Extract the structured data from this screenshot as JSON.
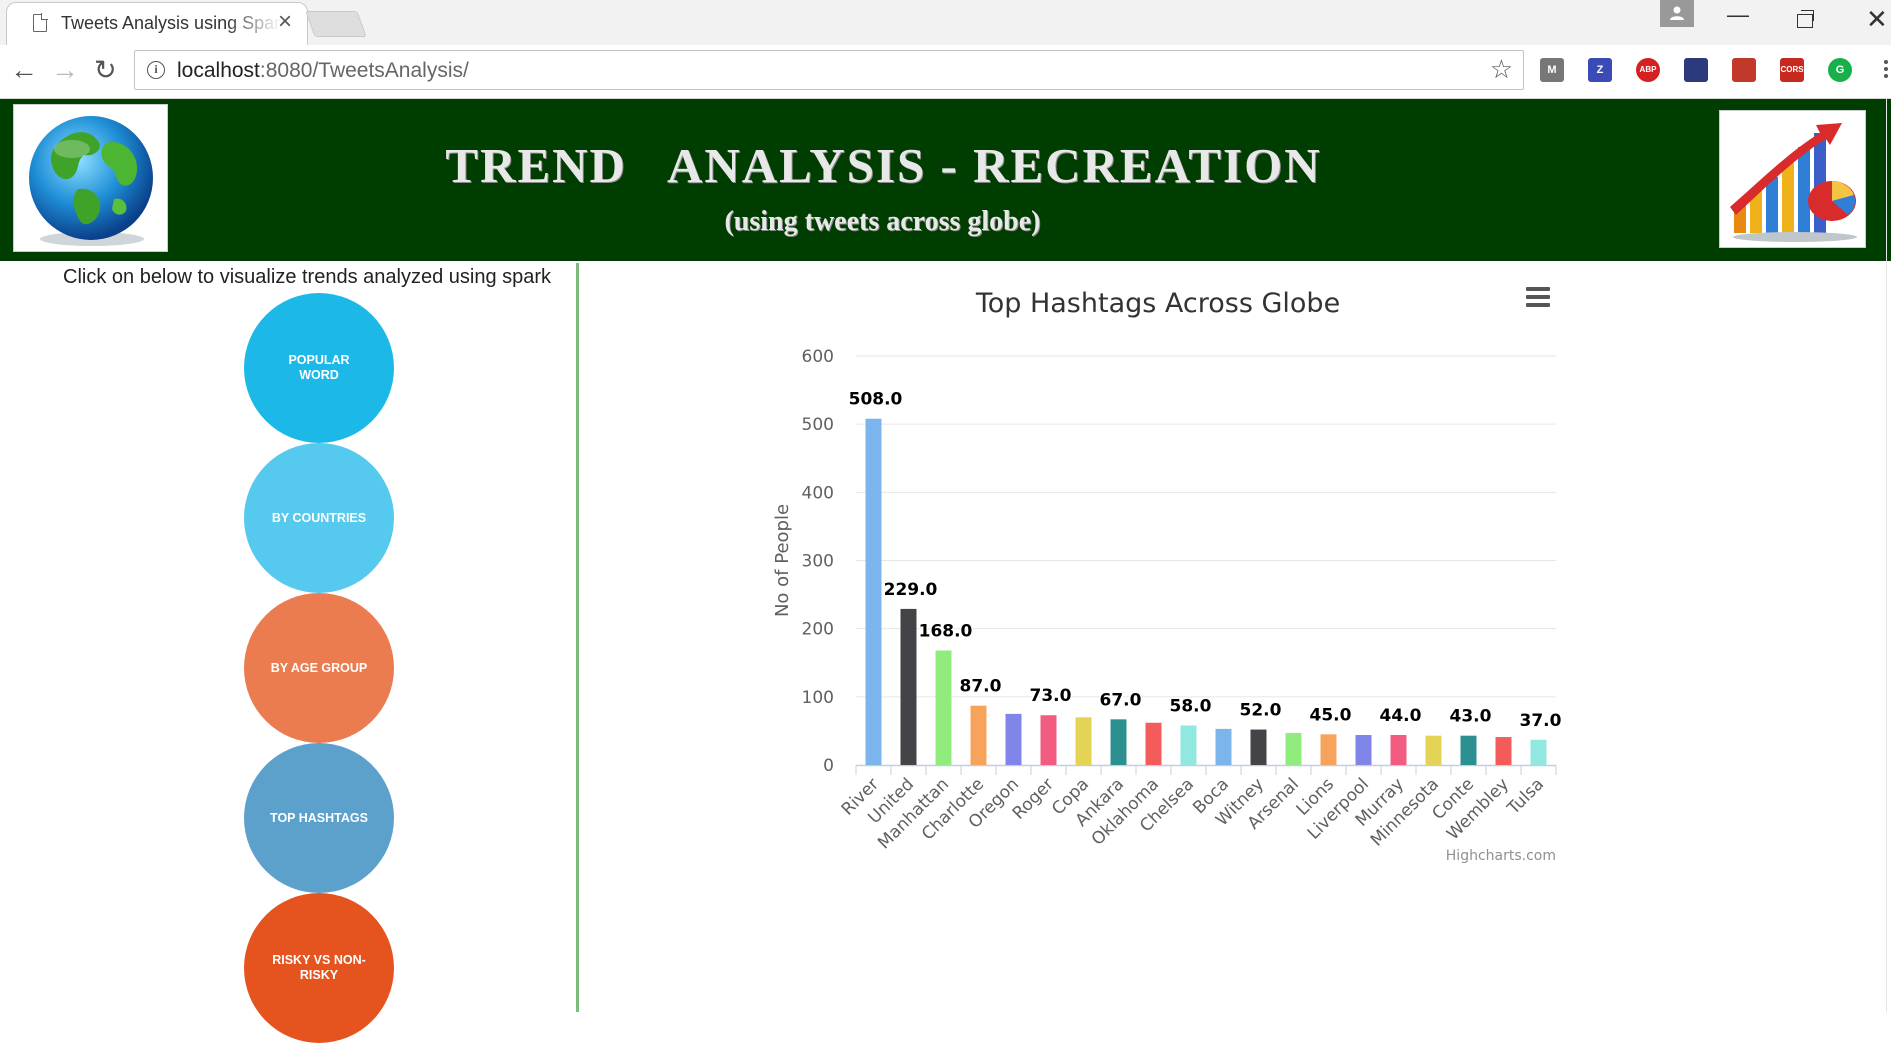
{
  "browser": {
    "tab_title": "Tweets Analysis using Spark",
    "tab_close": "×",
    "url_host": "localhost",
    "url_rest": ":8080/TweetsAnalysis/",
    "extensions": [
      {
        "name": "m-extension-icon",
        "label": "M",
        "color": "#777777"
      },
      {
        "name": "zotero-icon",
        "label": "Z",
        "color": "#3b4bb5"
      },
      {
        "name": "adblock-plus-icon",
        "label": "ABP",
        "color": "#d42020"
      },
      {
        "name": "puzzle-extension-icon",
        "label": "",
        "color": "#2c3a7d"
      },
      {
        "name": "bookmark-extension-icon",
        "label": "",
        "color": "#c0392b"
      },
      {
        "name": "cors-icon",
        "label": "CORS",
        "color": "#c8291f"
      },
      {
        "name": "grammarly-icon",
        "label": "G",
        "color": "#16b14b"
      }
    ]
  },
  "banner": {
    "title": "TREND   ANALYSIS - RECREATION",
    "subtitle": "(using tweets across globe)"
  },
  "sidebar": {
    "hint": "Click on below to visualize trends analyzed using spark",
    "buttons": [
      {
        "label": "POPULAR WORD",
        "color": "#1cb9e8"
      },
      {
        "label": "BY COUNTRIES",
        "color": "#55c9ee"
      },
      {
        "label": "BY AGE GROUP",
        "color": "#ea7c50"
      },
      {
        "label": "TOP HASHTAGS",
        "color": "#5ba1cc"
      },
      {
        "label": "RISKY VS NON-RISKY",
        "color": "#e5541f"
      }
    ]
  },
  "chart_data": {
    "type": "bar",
    "title": "Top Hashtags Across Globe",
    "xlabel": "",
    "ylabel": "No of People",
    "ylim": [
      0,
      600
    ],
    "yticks": [
      0,
      100,
      200,
      300,
      400,
      500,
      600
    ],
    "grid": true,
    "legend": false,
    "credits": "Highcharts.com",
    "categories": [
      "River",
      "United",
      "Manhattan",
      "Charlotte",
      "Oregon",
      "Roger",
      "Copa",
      "Ankara",
      "Oklahoma",
      "Chelsea",
      "Boca",
      "Witney",
      "Arsenal",
      "Lions",
      "Liverpool",
      "Murray",
      "Minnesota",
      "Conte",
      "Wembley",
      "Tulsa"
    ],
    "values": [
      508,
      229,
      168,
      87,
      75,
      73,
      70,
      67,
      62,
      58,
      53,
      52,
      47,
      45,
      44,
      44,
      43,
      43,
      41,
      37
    ],
    "data_labels": [
      "508.0",
      "229.0",
      "168.0",
      "87.0",
      null,
      "73.0",
      null,
      "67.0",
      null,
      "58.0",
      null,
      "52.0",
      null,
      "45.0",
      null,
      "44.0",
      null,
      "43.0",
      null,
      "37.0"
    ],
    "colors": [
      "#7cb5ec",
      "#434348",
      "#90ed7d",
      "#f7a35c",
      "#8085e9",
      "#f15c80",
      "#e4d354",
      "#2b908f",
      "#f45b5b",
      "#91e8e1",
      "#7cb5ec",
      "#434348",
      "#90ed7d",
      "#f7a35c",
      "#8085e9",
      "#f15c80",
      "#e4d354",
      "#2b908f",
      "#f45b5b",
      "#91e8e1"
    ]
  }
}
